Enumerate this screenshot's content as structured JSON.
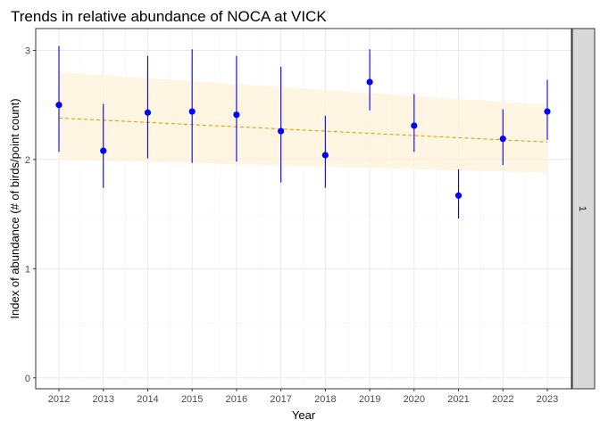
{
  "chart_data": {
    "type": "scatter",
    "title": "Trends in relative abundance of NOCA at VICK",
    "xlabel": "Year",
    "ylabel": "Index of abundance (# of birds/point count)",
    "facet_label": "1",
    "x": [
      2012,
      2013,
      2014,
      2015,
      2016,
      2017,
      2018,
      2019,
      2020,
      2021,
      2022,
      2023
    ],
    "series": [
      {
        "values": [
          2.5,
          2.08,
          2.43,
          2.44,
          2.41,
          2.26,
          2.04,
          2.71,
          2.31,
          1.67,
          2.19,
          2.44
        ],
        "lower": [
          2.07,
          1.74,
          2.01,
          1.97,
          1.98,
          1.79,
          1.74,
          2.45,
          2.07,
          1.46,
          1.95,
          2.18
        ],
        "upper": [
          3.04,
          2.51,
          2.95,
          3.01,
          2.95,
          2.85,
          2.4,
          3.01,
          2.6,
          1.91,
          2.46,
          2.73
        ]
      }
    ],
    "trend": {
      "start": {
        "x": 2012,
        "y": 2.38
      },
      "end": {
        "x": 2023,
        "y": 2.16
      },
      "band_start": [
        2.0,
        2.8
      ],
      "band_end": [
        1.88,
        2.5
      ]
    },
    "xticks": [
      2012,
      2013,
      2014,
      2015,
      2016,
      2017,
      2018,
      2019,
      2020,
      2021,
      2022,
      2023
    ],
    "yticks": [
      0,
      1,
      2,
      3
    ],
    "ylim": [
      -0.1,
      3.2
    ],
    "grid": true,
    "colors": {
      "points": "#0000ff",
      "errorbars": "#0000ff",
      "trend_line": "#e6a000",
      "band": "#fff2dc",
      "grid_major": "#ebebeb",
      "grid_minor": "#f4f4f4",
      "strip": "#d9d9d9"
    }
  }
}
